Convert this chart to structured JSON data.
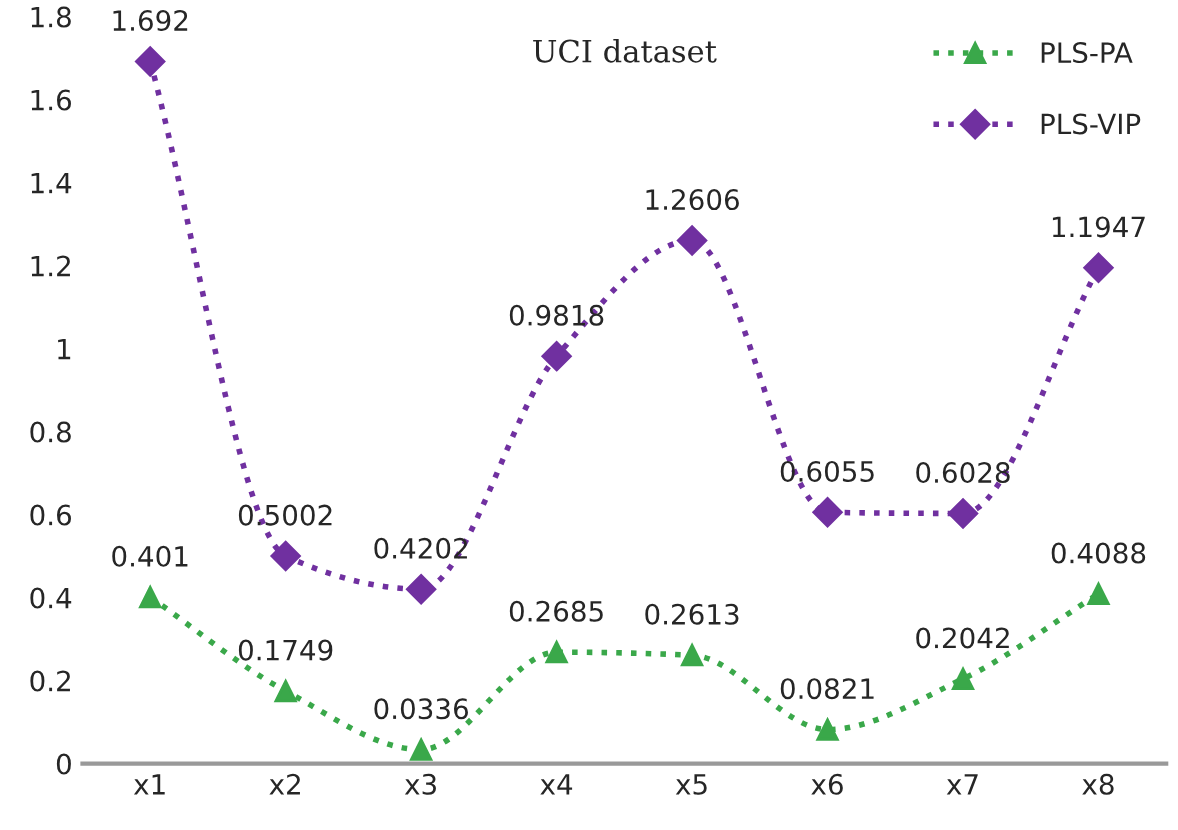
{
  "chart_data": {
    "type": "line",
    "title": "UCI dataset",
    "categories": [
      "x1",
      "x2",
      "x3",
      "x4",
      "x5",
      "x6",
      "x7",
      "x8"
    ],
    "series": [
      {
        "name": "PLS-PA",
        "color": "#3aa84a",
        "marker": "triangle",
        "values": [
          0.401,
          0.1749,
          0.0336,
          0.2685,
          0.2613,
          0.0821,
          0.2042,
          0.4088
        ]
      },
      {
        "name": "PLS-VIP",
        "color": "#7030a0",
        "marker": "diamond",
        "values": [
          1.692,
          0.5002,
          0.4202,
          0.9818,
          1.2606,
          0.6055,
          0.6028,
          1.1947
        ]
      }
    ],
    "ylim": [
      0,
      1.8
    ],
    "yticks": [
      0,
      0.2,
      0.4,
      0.6,
      0.8,
      1,
      1.2,
      1.4,
      1.6,
      1.8
    ],
    "data_labels": true,
    "grid": false,
    "legend": "top right",
    "line_style": "dotted"
  }
}
